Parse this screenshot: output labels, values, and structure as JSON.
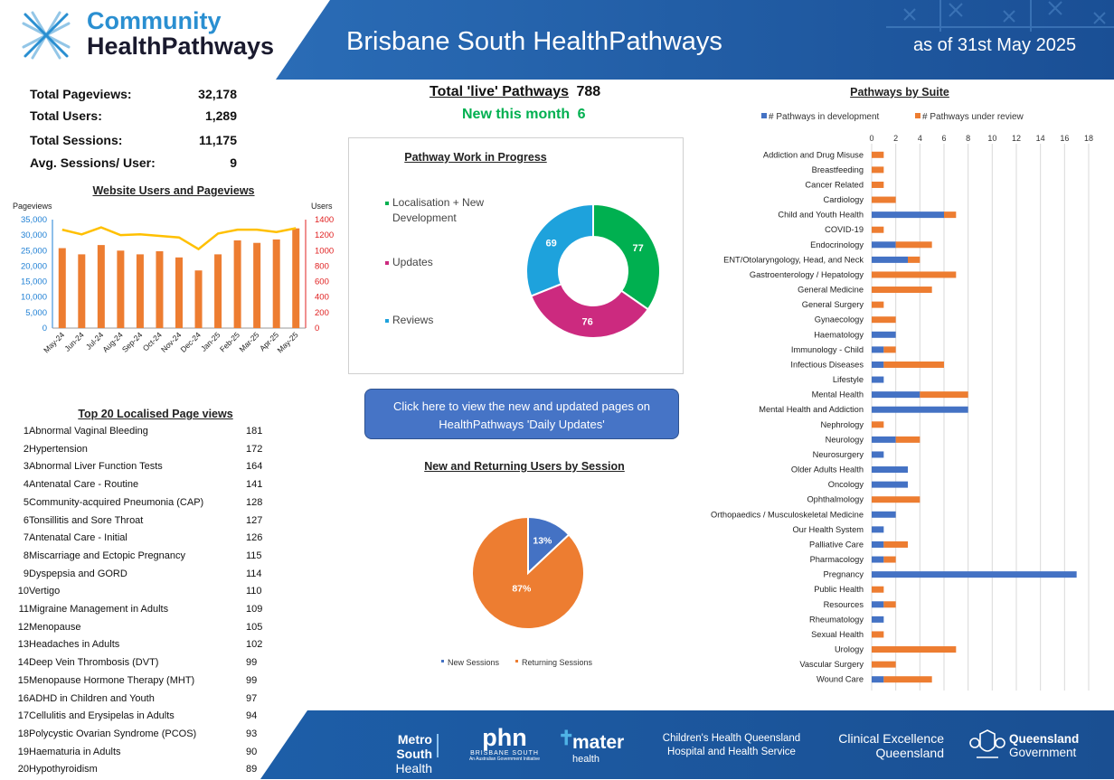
{
  "header": {
    "logo_line1": "Community",
    "logo_line2": "HealthPathways",
    "title": "Brisbane South HealthPathways",
    "date": "as of 31st May 2025"
  },
  "stats": [
    {
      "label": "Total Pageviews:",
      "value": "32,178"
    },
    {
      "label": "Total Users:",
      "value": "1,289"
    },
    {
      "label": "Total Sessions:",
      "value": "11,175"
    },
    {
      "label": "Avg. Sessions/ User:",
      "value": "9"
    }
  ],
  "live": {
    "label": "Total 'live' Pathways",
    "value": "788",
    "new_label": "New this month",
    "new_value": "6"
  },
  "button": {
    "line1": "Click here to view the new and updated pages on",
    "line2": "HealthPathways 'Daily Updates'"
  },
  "top20": {
    "title": "Top 20 Localised Page views",
    "items": [
      {
        "rank": "1",
        "name": "Abnormal Vaginal Bleeding",
        "views": "181"
      },
      {
        "rank": "2",
        "name": "Hypertension",
        "views": "172"
      },
      {
        "rank": "3",
        "name": "Abnormal Liver Function Tests",
        "views": "164"
      },
      {
        "rank": "4",
        "name": "Antenatal Care - Routine",
        "views": "141"
      },
      {
        "rank": "5",
        "name": "Community-acquired Pneumonia (CAP)",
        "views": "128"
      },
      {
        "rank": "6",
        "name": "Tonsillitis and Sore Throat",
        "views": "127"
      },
      {
        "rank": "7",
        "name": "Antenatal Care - Initial",
        "views": "126"
      },
      {
        "rank": "8",
        "name": "Miscarriage and Ectopic Pregnancy",
        "views": "115"
      },
      {
        "rank": "9",
        "name": "Dyspepsia and GORD",
        "views": "114"
      },
      {
        "rank": "10",
        "name": "Vertigo",
        "views": "110"
      },
      {
        "rank": "11",
        "name": "Migraine Management in Adults",
        "views": "109"
      },
      {
        "rank": "12",
        "name": "Menopause",
        "views": "105"
      },
      {
        "rank": "13",
        "name": "Headaches in Adults",
        "views": "102"
      },
      {
        "rank": "14",
        "name": "Deep Vein Thrombosis (DVT)",
        "views": "99"
      },
      {
        "rank": "15",
        "name": "Menopause Hormone Therapy (MHT)",
        "views": "99"
      },
      {
        "rank": "16",
        "name": "ADHD in Children and Youth",
        "views": "97"
      },
      {
        "rank": "17",
        "name": "Cellulitis and Erysipelas in Adults",
        "views": "94"
      },
      {
        "rank": "18",
        "name": "Polycystic Ovarian Syndrome (PCOS)",
        "views": "93"
      },
      {
        "rank": "19",
        "name": "Haematuria in Adults",
        "views": "90"
      },
      {
        "rank": "20",
        "name": "Hypothyroidism",
        "views": "89"
      }
    ]
  },
  "footer": {
    "metro1": "Metro South",
    "metro2": "Health",
    "phn1": "phn",
    "phn2": "BRISBANE SOUTH",
    "phn3": "An Australian Government Initiative",
    "mater1": "mater",
    "mater2": "health",
    "chq1": "Children's Health Queensland",
    "chq2": "Hospital and Health Service",
    "ceq1": "Clinical Excellence",
    "ceq2": "Queensland",
    "qg1": "Queensland",
    "qg2": "Government"
  },
  "colors": {
    "blue": "#4472c4",
    "orange": "#ed7d31",
    "gold": "#ffc000",
    "green": "#00b050",
    "magenta": "#cc2a7f",
    "cyan": "#1ea2dc",
    "header": "#1f5fa8"
  },
  "chart_data": [
    {
      "type": "bar",
      "title": "Website Users and Pageviews",
      "categories": [
        "May-24",
        "Jun-24",
        "Jul-24",
        "Aug-24",
        "Sep-24",
        "Oct-24",
        "Nov-24",
        "Dec-24",
        "Jan-25",
        "Feb-25",
        "Mar-25",
        "Apr-25",
        "May-25"
      ],
      "series": [
        {
          "name": "Pageviews",
          "type": "bar",
          "axis": "left",
          "values": [
            25800,
            23800,
            26800,
            25000,
            23800,
            24800,
            22800,
            18600,
            23800,
            28300,
            27500,
            28600,
            32178
          ]
        },
        {
          "name": "Users",
          "type": "line",
          "axis": "right",
          "values": [
            1270,
            1210,
            1300,
            1200,
            1210,
            1190,
            1170,
            1020,
            1220,
            1270,
            1270,
            1240,
            1289
          ]
        }
      ],
      "ylabel_left": "Pageviews",
      "ylabel_right": "Users",
      "ylim_left": [
        0,
        35000
      ],
      "yticks_left": [
        "0",
        "5,000",
        "10,000",
        "15,000",
        "20,000",
        "25,000",
        "30,000",
        "35,000"
      ],
      "ylim_right": [
        0,
        1400
      ],
      "yticks_right": [
        "0",
        "200",
        "400",
        "600",
        "800",
        "1000",
        "1200",
        "1400"
      ]
    },
    {
      "type": "pie",
      "title": "Pathway Work in Progress",
      "donut": true,
      "labels": [
        "Localisation + New Development",
        "Updates",
        "Reviews"
      ],
      "values": [
        77,
        76,
        69
      ]
    },
    {
      "type": "pie",
      "title": "New and Returning Users by Session",
      "labels": [
        "New Sessions",
        "Returning Sessions"
      ],
      "values": [
        13,
        87
      ],
      "value_labels": [
        "13%",
        "87%"
      ]
    },
    {
      "type": "bar",
      "orientation": "horizontal",
      "stacked": true,
      "title": "Pathways by Suite",
      "xlim": [
        0,
        18
      ],
      "xticks": [
        0,
        2,
        4,
        6,
        8,
        10,
        12,
        14,
        16,
        18
      ],
      "categories": [
        "Addiction and Drug Misuse",
        "Breastfeeding",
        "Cancer Related",
        "Cardiology",
        "Child and Youth Health",
        "COVID-19",
        "Endocrinology",
        "ENT/Otolaryngology, Head, and Neck",
        "Gastroenterology / Hepatology",
        "General Medicine",
        "General Surgery",
        "Gynaecology",
        "Haematology",
        "Immunology - Child",
        "Infectious Diseases",
        "Lifestyle",
        "Mental Health",
        "Mental Health and Addiction",
        "Nephrology",
        "Neurology",
        "Neurosurgery",
        "Older Adults Health",
        "Oncology",
        "Ophthalmology",
        "Orthopaedics / Musculoskeletal Medicine",
        "Our Health System",
        "Palliative Care",
        "Pharmacology",
        "Pregnancy",
        "Public Health",
        "Resources",
        "Rheumatology",
        "Sexual Health",
        "Urology",
        "Vascular Surgery",
        "Wound Care"
      ],
      "series": [
        {
          "name": "# Pathways in development",
          "values": [
            0,
            0,
            0,
            0,
            6,
            0,
            2,
            3,
            0,
            0,
            0,
            0,
            2,
            1,
            1,
            1,
            4,
            8,
            0,
            2,
            1,
            3,
            3,
            0,
            2,
            1,
            1,
            1,
            17,
            0,
            1,
            1,
            0,
            0,
            0,
            1
          ]
        },
        {
          "name": "# Pathways under review",
          "values": [
            1,
            1,
            1,
            2,
            1,
            1,
            3,
            1,
            7,
            5,
            1,
            2,
            0,
            1,
            5,
            0,
            4,
            0,
            1,
            2,
            0,
            0,
            0,
            4,
            0,
            0,
            2,
            1,
            0,
            1,
            1,
            0,
            1,
            7,
            2,
            4
          ]
        }
      ],
      "legend": "top"
    }
  ]
}
